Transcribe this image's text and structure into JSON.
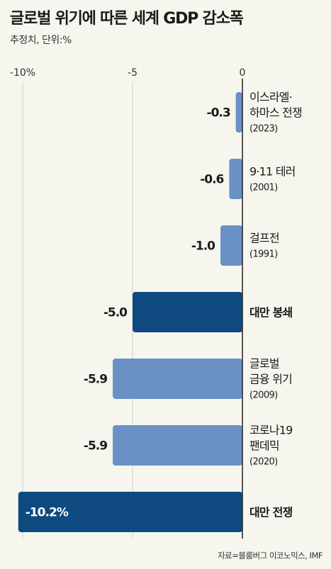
{
  "header": {
    "title": "글로벌 위기에 따른 세계 GDP 감소폭",
    "subtitle": "추정치, 단위:%"
  },
  "footer": {
    "source": "자료=블룸버그 이코노믹스, IMF"
  },
  "colors": {
    "bar_light": "#6a91c6",
    "bar_dark": "#0e4a80",
    "grid": "#cfcfcf",
    "axis": "#222222"
  },
  "chart_data": {
    "type": "bar",
    "orientation": "horizontal",
    "title": "글로벌 위기에 따른 세계 GDP 감소폭",
    "subtitle": "추정치, 단위:%",
    "xlim": [
      -10.5,
      0
    ],
    "xticks": [
      -10,
      -5,
      0
    ],
    "xtick_labels": [
      "-10%",
      "-5",
      "0"
    ],
    "grid": "vertical",
    "categories": [
      {
        "lines": [
          "이스라엘·",
          "하마스 전쟁"
        ],
        "year": "(2023)",
        "highlight": false
      },
      {
        "lines": [
          "9·11 테러"
        ],
        "year": "(2001)",
        "highlight": false
      },
      {
        "lines": [
          "걸프전"
        ],
        "year": "(1991)",
        "highlight": false
      },
      {
        "lines": [
          "대만 봉쇄"
        ],
        "year": "",
        "highlight": true
      },
      {
        "lines": [
          "글로벌",
          "금융 위기"
        ],
        "year": "(2009)",
        "highlight": false
      },
      {
        "lines": [
          "코로나19",
          "팬데믹"
        ],
        "year": "(2020)",
        "highlight": false
      },
      {
        "lines": [
          "대만 전쟁"
        ],
        "year": "",
        "highlight": true
      }
    ],
    "values": [
      -0.3,
      -0.6,
      -1.0,
      -5.0,
      -5.9,
      -5.9,
      -10.2
    ],
    "value_labels": [
      "-0.3",
      "-0.6",
      "-1.0",
      "-5.0",
      "-5.9",
      "-5.9",
      "-10.2%"
    ]
  }
}
